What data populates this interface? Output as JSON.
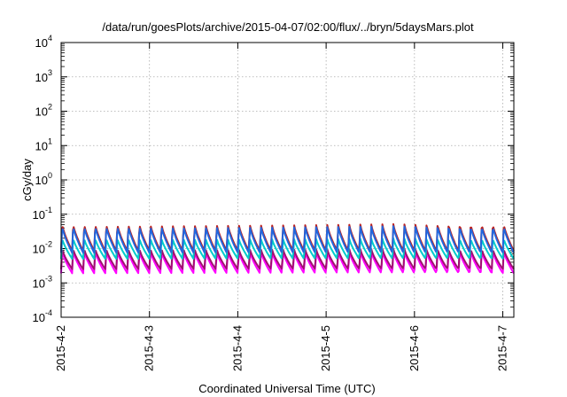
{
  "chart_data": {
    "type": "line",
    "title": "/data/run/goesPlots/archive/2015-04-07/02:00/flux/../bryn/5daysMars.plot",
    "xlabel": "Coordinated Universal Time (UTC)",
    "ylabel": "cGy/day",
    "y_scale": "log",
    "ylim": [
      0.0001,
      10000
    ],
    "xlim": [
      "2015-04-02 00:00",
      "2015-04-07 03:00"
    ],
    "grid": true,
    "x_ticks": [
      "2015-4-2",
      "2015-4-3",
      "2015-4-4",
      "2015-4-5",
      "2015-4-6",
      "2015-4-7"
    ],
    "y_ticks": [
      {
        "base": "10",
        "exp": "-4",
        "value": 0.0001
      },
      {
        "base": "10",
        "exp": "-3",
        "value": 0.001
      },
      {
        "base": "10",
        "exp": "-2",
        "value": 0.01
      },
      {
        "base": "10",
        "exp": "-1",
        "value": 0.1
      },
      {
        "base": "10",
        "exp": "0",
        "value": 1
      },
      {
        "base": "10",
        "exp": "1",
        "value": 10
      },
      {
        "base": "10",
        "exp": "2",
        "value": 100
      },
      {
        "base": "10",
        "exp": "3",
        "value": 1000
      },
      {
        "base": "10",
        "exp": "4",
        "value": 10000
      }
    ],
    "cycle_hours": 3,
    "series": [
      {
        "color": "#ff00ff",
        "peak": 0.0085,
        "trough": 0.0019
      },
      {
        "color": "#a01070",
        "peak": 0.01,
        "trough": 0.0025
      },
      {
        "color": "#bb2222",
        "peak": 0.052,
        "trough": 0.0085
      },
      {
        "color": "#00cccc",
        "peak": 0.02,
        "trough": 0.005
      },
      {
        "color": "#2266dd",
        "peak": 0.045,
        "trough": 0.0075
      }
    ]
  }
}
